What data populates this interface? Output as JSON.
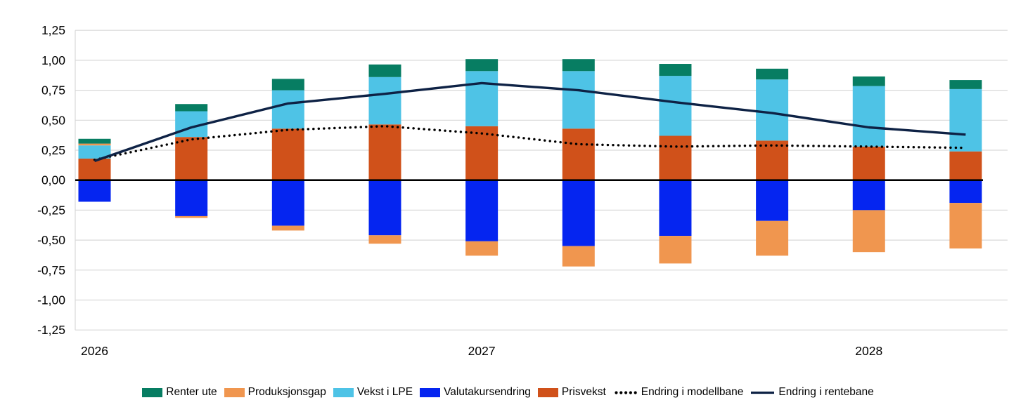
{
  "chart_data": {
    "type": "bar",
    "variant": "stacked-bars-with-overlaid-lines",
    "title": "",
    "categories": [
      "2026Q1",
      "2026Q2",
      "2026Q3",
      "2026Q4",
      "2027Q1",
      "2027Q2",
      "2027Q3",
      "2027Q4",
      "2028Q1",
      "2028Q2"
    ],
    "x_tick_labels": [
      {
        "label": "2026",
        "category_index": 0
      },
      {
        "label": "2027",
        "category_index": 4
      },
      {
        "label": "2028",
        "category_index": 8
      }
    ],
    "y_tick_labels": [
      "1,25",
      "1,00",
      "0,75",
      "0,50",
      "0,25",
      "0,00",
      "-0,25",
      "-0,50",
      "-0,75",
      "-1,00",
      "-1,25"
    ],
    "ylim": [
      -1.25,
      1.25
    ],
    "y_step": 0.25,
    "grid": true,
    "legend_position": "bottom",
    "stack_order": [
      "Prisvekst",
      "Valutakursendring",
      "Vekst i LPE",
      "Produksjonsgap",
      "Renter ute"
    ],
    "bar_series": [
      {
        "name": "Renter ute",
        "color": "#077D62",
        "values": [
          0.04,
          0.06,
          0.095,
          0.105,
          0.1,
          0.1,
          0.1,
          0.09,
          0.08,
          0.075
        ]
      },
      {
        "name": "Produksjonsgap",
        "color": "#F0964F",
        "values": [
          0.015,
          -0.015,
          -0.04,
          -0.07,
          -0.12,
          -0.17,
          -0.23,
          -0.29,
          -0.35,
          -0.38
        ]
      },
      {
        "name": "Vekst i LPE",
        "color": "#4EC3E6",
        "values": [
          0.11,
          0.215,
          0.32,
          0.395,
          0.46,
          0.48,
          0.5,
          0.51,
          0.505,
          0.52
        ]
      },
      {
        "name": "Valutakursendring",
        "color": "#0525F0",
        "values": [
          -0.18,
          -0.3,
          -0.38,
          -0.46,
          -0.51,
          -0.55,
          -0.465,
          -0.34,
          -0.25,
          -0.19
        ]
      },
      {
        "name": "Prisvekst",
        "color": "#D0511A",
        "values": [
          0.18,
          0.36,
          0.43,
          0.465,
          0.45,
          0.43,
          0.37,
          0.33,
          0.28,
          0.24
        ]
      }
    ],
    "line_series": [
      {
        "name": "Endring i modellbane",
        "style": "dotted",
        "color": "#000000",
        "values": [
          0.17,
          0.34,
          0.42,
          0.45,
          0.39,
          0.3,
          0.28,
          0.29,
          0.28,
          0.27
        ]
      },
      {
        "name": "Endring i rentebane",
        "style": "solid",
        "color": "#0E2245",
        "values": [
          0.16,
          0.44,
          0.64,
          0.72,
          0.81,
          0.75,
          0.65,
          0.56,
          0.44,
          0.38
        ]
      }
    ],
    "legend": [
      "Renter ute",
      "Produksjonsgap",
      "Vekst i LPE",
      "Valutakursendring",
      "Prisvekst",
      "Endring i modellbane",
      "Endring i rentebane"
    ],
    "colors": {
      "gridline": "#D9D9D9",
      "zero_line": "#000000",
      "axis_text": "#000000",
      "background": "#FFFFFF"
    }
  }
}
